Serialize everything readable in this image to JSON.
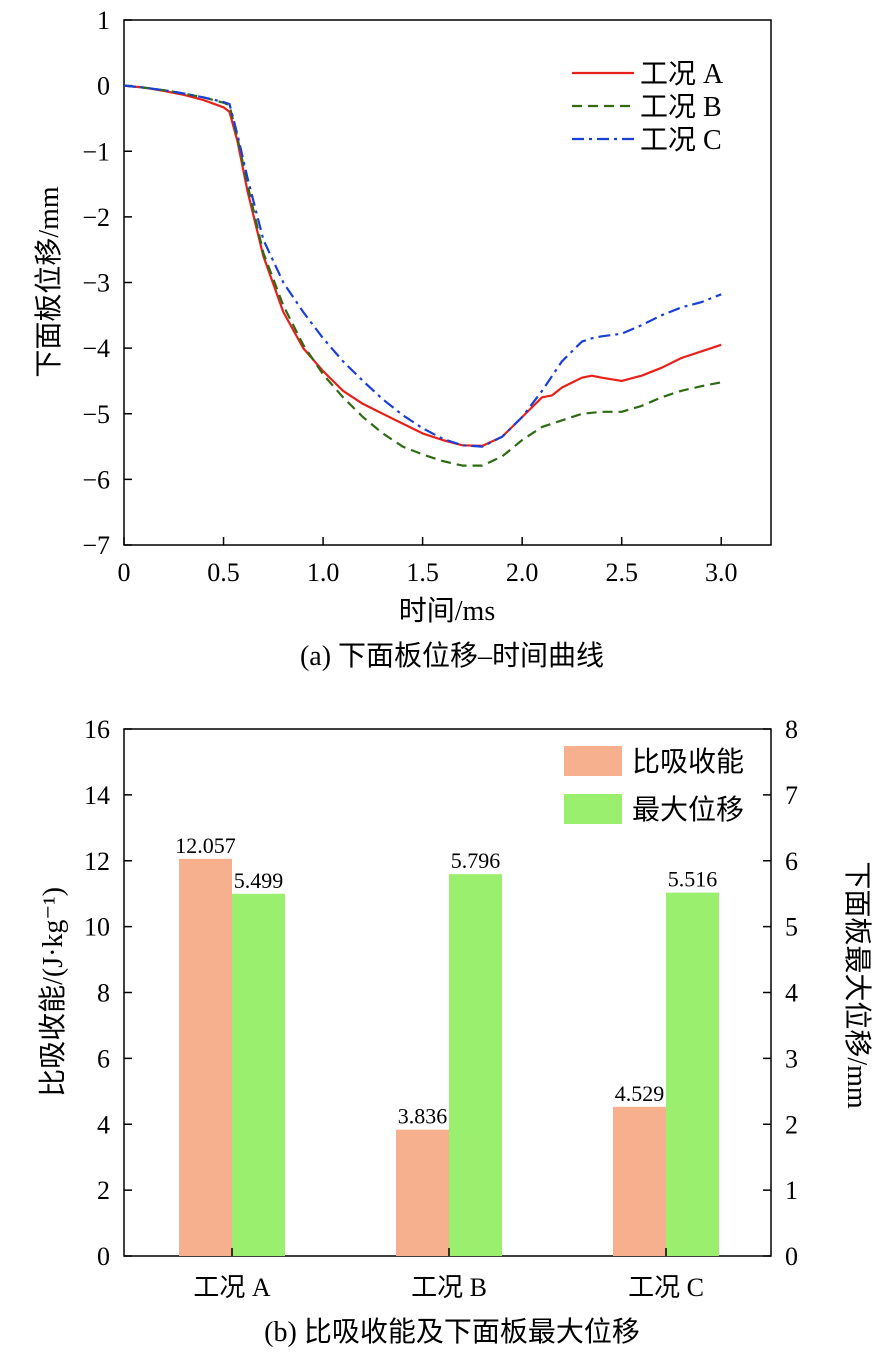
{
  "chart_data": [
    {
      "type": "line",
      "caption": "(a) 下面板位移–时间曲线",
      "xlabel": "时间/ms",
      "ylabel": "下面板位移/mm",
      "xlim": [
        0,
        3.25
      ],
      "ylim": [
        -7,
        1
      ],
      "xticks": [
        0,
        0.5,
        1.0,
        1.5,
        2.0,
        2.5,
        3.0
      ],
      "xtick_labels": [
        "0",
        "0.5",
        "1.0",
        "1.5",
        "2.0",
        "2.5",
        "3.0"
      ],
      "yticks": [
        1,
        0,
        -1,
        -2,
        -3,
        -4,
        -5,
        -6,
        -7
      ],
      "ytick_labels": [
        "1",
        "0",
        "−1",
        "−2",
        "−3",
        "−4",
        "−5",
        "−6",
        "−7"
      ],
      "legend_position": "top-right",
      "series": [
        {
          "name": "工况 A",
          "color": "#e8201a",
          "dash": "solid",
          "x": [
            0,
            0.1,
            0.2,
            0.3,
            0.4,
            0.5,
            0.53,
            0.57,
            0.62,
            0.7,
            0.8,
            0.9,
            1.0,
            1.1,
            1.2,
            1.3,
            1.4,
            1.5,
            1.6,
            1.7,
            1.8,
            1.9,
            2.0,
            2.1,
            2.15,
            2.2,
            2.3,
            2.35,
            2.4,
            2.5,
            2.6,
            2.7,
            2.8,
            2.9,
            3.0
          ],
          "y": [
            0,
            -0.03,
            -0.08,
            -0.14,
            -0.22,
            -0.33,
            -0.4,
            -0.85,
            -1.6,
            -2.6,
            -3.45,
            -4.0,
            -4.35,
            -4.65,
            -4.85,
            -5.0,
            -5.15,
            -5.3,
            -5.4,
            -5.48,
            -5.49,
            -5.35,
            -5.05,
            -4.75,
            -4.72,
            -4.6,
            -4.45,
            -4.42,
            -4.45,
            -4.5,
            -4.42,
            -4.3,
            -4.15,
            -4.05,
            -3.95
          ]
        },
        {
          "name": "工况 B",
          "color": "#2e6b12",
          "dash": "dashed",
          "x": [
            0,
            0.1,
            0.2,
            0.3,
            0.4,
            0.5,
            0.53,
            0.57,
            0.62,
            0.7,
            0.8,
            0.9,
            1.0,
            1.1,
            1.2,
            1.3,
            1.4,
            1.5,
            1.6,
            1.7,
            1.8,
            1.9,
            2.0,
            2.1,
            2.2,
            2.3,
            2.4,
            2.5,
            2.6,
            2.7,
            2.8,
            2.9,
            3.0
          ],
          "y": [
            0,
            -0.03,
            -0.07,
            -0.12,
            -0.18,
            -0.26,
            -0.3,
            -0.8,
            -1.5,
            -2.55,
            -3.35,
            -3.95,
            -4.4,
            -4.75,
            -5.05,
            -5.3,
            -5.5,
            -5.62,
            -5.72,
            -5.79,
            -5.79,
            -5.65,
            -5.4,
            -5.2,
            -5.1,
            -5.0,
            -4.97,
            -4.97,
            -4.88,
            -4.75,
            -4.65,
            -4.58,
            -4.52
          ]
        },
        {
          "name": "工况 C",
          "color": "#1a3fd6",
          "dash": "dashdot",
          "x": [
            0,
            0.1,
            0.2,
            0.3,
            0.4,
            0.5,
            0.53,
            0.57,
            0.62,
            0.7,
            0.8,
            0.9,
            1.0,
            1.1,
            1.2,
            1.3,
            1.4,
            1.5,
            1.6,
            1.7,
            1.8,
            1.9,
            2.0,
            2.1,
            2.2,
            2.3,
            2.35,
            2.4,
            2.5,
            2.6,
            2.7,
            2.8,
            2.9,
            3.0
          ],
          "y": [
            0,
            -0.03,
            -0.07,
            -0.12,
            -0.18,
            -0.25,
            -0.28,
            -0.75,
            -1.4,
            -2.35,
            -3.0,
            -3.45,
            -3.85,
            -4.2,
            -4.5,
            -4.78,
            -5.02,
            -5.22,
            -5.38,
            -5.48,
            -5.5,
            -5.35,
            -5.05,
            -4.65,
            -4.2,
            -3.9,
            -3.85,
            -3.82,
            -3.78,
            -3.65,
            -3.5,
            -3.38,
            -3.3,
            -3.18
          ]
        }
      ]
    },
    {
      "type": "bar",
      "caption": "(b) 比吸收能及下面板最大位移",
      "categories": [
        "工况 A",
        "工况 B",
        "工况 C"
      ],
      "ylabel": "比吸收能/(J·kg⁻¹)",
      "y2label": "下面板最大位移/mm",
      "ylim": [
        0,
        16
      ],
      "y2lim": [
        0,
        8
      ],
      "yticks": [
        0,
        2,
        4,
        6,
        8,
        10,
        12,
        14,
        16
      ],
      "y2ticks": [
        0,
        1,
        2,
        3,
        4,
        5,
        6,
        7,
        8
      ],
      "legend_position": "top-right",
      "series": [
        {
          "name": "比吸收能",
          "color": "#f7b08d",
          "axis": "left",
          "values": [
            12.057,
            3.836,
            4.529
          ],
          "labels": [
            "12.057",
            "3.836",
            "4.529"
          ]
        },
        {
          "name": "最大位移",
          "color": "#9af06e",
          "axis": "right",
          "values": [
            5.499,
            5.796,
            5.516
          ],
          "labels": [
            "5.499",
            "5.796",
            "5.516"
          ]
        }
      ]
    }
  ]
}
